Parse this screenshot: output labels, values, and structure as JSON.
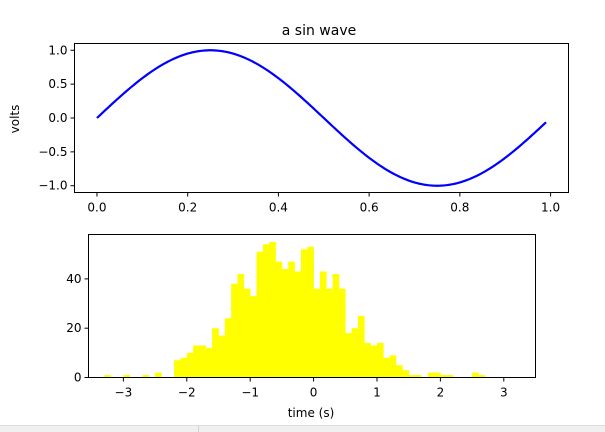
{
  "chart_data": [
    {
      "type": "line",
      "title": "a sin wave",
      "xlabel": "",
      "ylabel": "volts",
      "xlim": [
        -0.0495,
        1.0395
      ],
      "ylim": [
        -1.1,
        1.1
      ],
      "x_ticks": [
        0.0,
        0.2,
        0.4,
        0.6,
        0.8,
        1.0
      ],
      "x_tick_labels": [
        "0.0",
        "0.2",
        "0.4",
        "0.6",
        "0.8",
        "1.0"
      ],
      "y_ticks": [
        -1.0,
        -0.5,
        0.0,
        0.5,
        1.0
      ],
      "y_tick_labels": [
        "−1.0",
        "−0.5",
        "0.0",
        "0.5",
        "1.0"
      ],
      "grid": false,
      "series": [
        {
          "color": "#0000ff",
          "x": [
            0.0,
            0.05,
            0.1,
            0.15,
            0.2,
            0.25,
            0.3,
            0.35,
            0.4,
            0.45,
            0.5,
            0.55,
            0.6,
            0.65,
            0.7,
            0.75,
            0.8,
            0.85,
            0.9,
            0.95,
            0.99
          ],
          "y": [
            0.0,
            0.309,
            0.588,
            0.809,
            0.951,
            1.0,
            0.951,
            0.809,
            0.588,
            0.309,
            0.0,
            -0.309,
            -0.588,
            -0.809,
            -0.951,
            -1.0,
            -0.951,
            -0.809,
            -0.588,
            -0.309,
            -0.063
          ]
        }
      ]
    },
    {
      "type": "bar",
      "title": "",
      "xlabel": "time (s)",
      "ylabel": "",
      "xlim": [
        -3.55,
        3.5
      ],
      "ylim": [
        0,
        58
      ],
      "x_ticks": [
        -3,
        -2,
        -1,
        0,
        1,
        2,
        3
      ],
      "x_tick_labels": [
        "−3",
        "−2",
        "−1",
        "0",
        "1",
        "2",
        "3"
      ],
      "y_ticks": [
        0,
        20,
        40
      ],
      "y_tick_labels": [
        "0",
        "20",
        "40"
      ],
      "grid": false,
      "color": "#ffff00",
      "bin_edges": [
        -3.3,
        -3.2,
        -3.1,
        -3.0,
        -2.9,
        -2.8,
        -2.7,
        -2.6,
        -2.5,
        -2.4,
        -2.3,
        -2.2,
        -2.1,
        -2.0,
        -1.9,
        -1.8,
        -1.7,
        -1.6,
        -1.5,
        -1.4,
        -1.3,
        -1.2,
        -1.1,
        -1.0,
        -0.9,
        -0.8,
        -0.7,
        -0.6,
        -0.5,
        -0.4,
        -0.3,
        -0.2,
        -0.1,
        0.0,
        0.1,
        0.2,
        0.3,
        0.4,
        0.5,
        0.6,
        0.7,
        0.8,
        0.9,
        1.0,
        1.1,
        1.2,
        1.3,
        1.4,
        1.5,
        1.6,
        1.7,
        1.8,
        1.9,
        2.0,
        2.1,
        2.2,
        2.3,
        2.4,
        2.5,
        2.6,
        2.7,
        2.8,
        2.9,
        3.0,
        3.1,
        3.2
      ],
      "counts": [
        1,
        0,
        0,
        1,
        0,
        0,
        1,
        0,
        2,
        0,
        0,
        7,
        8,
        10,
        13,
        13,
        12,
        20,
        17,
        24,
        38,
        42,
        36,
        33,
        51,
        54,
        55,
        47,
        44,
        47,
        43,
        52,
        53,
        36,
        43,
        36,
        42,
        36,
        18,
        20,
        25,
        14,
        13,
        14,
        8,
        9,
        5,
        3,
        1,
        1,
        0,
        2,
        2,
        1,
        1,
        0,
        0,
        0,
        2,
        1,
        0,
        0,
        0,
        0,
        0
      ]
    }
  ],
  "window": {
    "status_left": "",
    "status_right": ""
  }
}
